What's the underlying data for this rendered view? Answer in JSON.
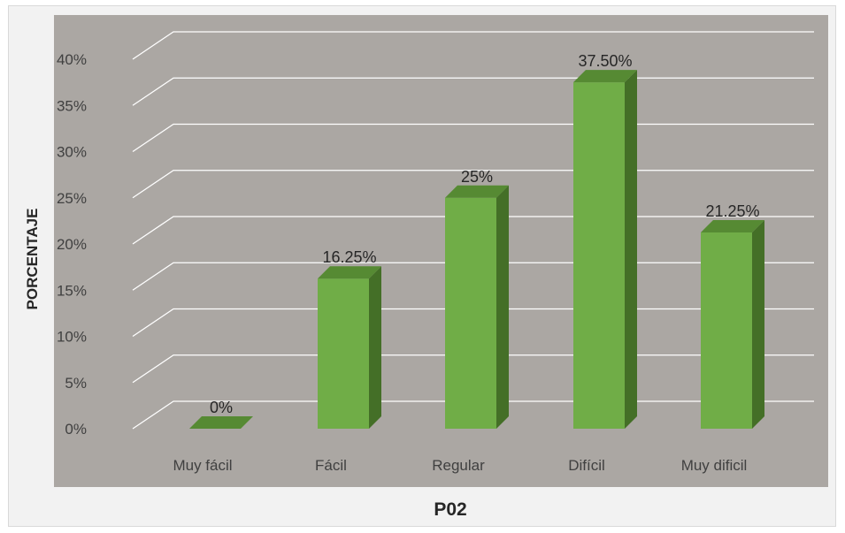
{
  "chart_data": {
    "type": "bar",
    "categories": [
      "Muy fácil",
      "Fácil",
      "Regular",
      "Difícil",
      "Muy dificil"
    ],
    "values": [
      0,
      16.25,
      25,
      37.5,
      21.25
    ],
    "data_labels": [
      "0%",
      "16.25%",
      "25%",
      "37.50%",
      "21.25%"
    ],
    "xlabel": "P02",
    "ylabel": "PORCENTAJE",
    "ylim": [
      0,
      40
    ],
    "y_ticks": [
      "0%",
      "5%",
      "10%",
      "15%",
      "20%",
      "25%",
      "30%",
      "35%",
      "40%"
    ],
    "grid": true,
    "legend": "none",
    "style": "3d-column"
  },
  "colors": {
    "plot_background": "#aba7a3",
    "frame_background": "#f2f2f2",
    "gridline": "#ffffff",
    "bar_front": "#70ad47",
    "bar_side": "#446f27",
    "bar_top": "#568a33"
  }
}
